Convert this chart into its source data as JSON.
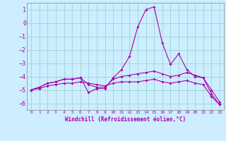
{
  "xlabel": "Windchill (Refroidissement éolien,°C)",
  "background_color": "#cceeff",
  "grid_color": "#99cccc",
  "line_color": "#aa00aa",
  "x": [
    0,
    1,
    2,
    3,
    4,
    5,
    6,
    7,
    8,
    9,
    10,
    11,
    12,
    13,
    14,
    15,
    16,
    17,
    18,
    19,
    20,
    21,
    22,
    23
  ],
  "line1": [
    -5.0,
    -4.8,
    -4.5,
    -4.4,
    -4.2,
    -4.2,
    -4.1,
    -5.2,
    -4.9,
    -4.9,
    -4.1,
    -3.5,
    -2.5,
    -0.3,
    1.0,
    1.2,
    -1.5,
    -3.1,
    -2.3,
    -3.5,
    -4.0,
    -4.1,
    -5.0,
    -5.9
  ],
  "line2": [
    -5.0,
    -4.8,
    -4.5,
    -4.4,
    -4.2,
    -4.2,
    -4.1,
    -4.6,
    -4.8,
    -4.8,
    -4.2,
    -4.0,
    -3.9,
    -3.8,
    -3.7,
    -3.6,
    -3.8,
    -4.0,
    -3.9,
    -3.7,
    -3.9,
    -4.1,
    -5.3,
    -6.1
  ],
  "line3": [
    -5.0,
    -4.9,
    -4.7,
    -4.6,
    -4.5,
    -4.5,
    -4.4,
    -4.5,
    -4.6,
    -4.7,
    -4.5,
    -4.4,
    -4.4,
    -4.4,
    -4.3,
    -4.2,
    -4.4,
    -4.5,
    -4.4,
    -4.3,
    -4.5,
    -4.6,
    -5.5,
    -6.1
  ],
  "ylim": [
    -6.5,
    1.5
  ],
  "yticks": [
    -6,
    -5,
    -4,
    -3,
    -2,
    -1,
    0,
    1
  ],
  "xlim": [
    -0.5,
    23.5
  ],
  "marker": "D",
  "markersize": 2.0,
  "linewidth": 0.8
}
